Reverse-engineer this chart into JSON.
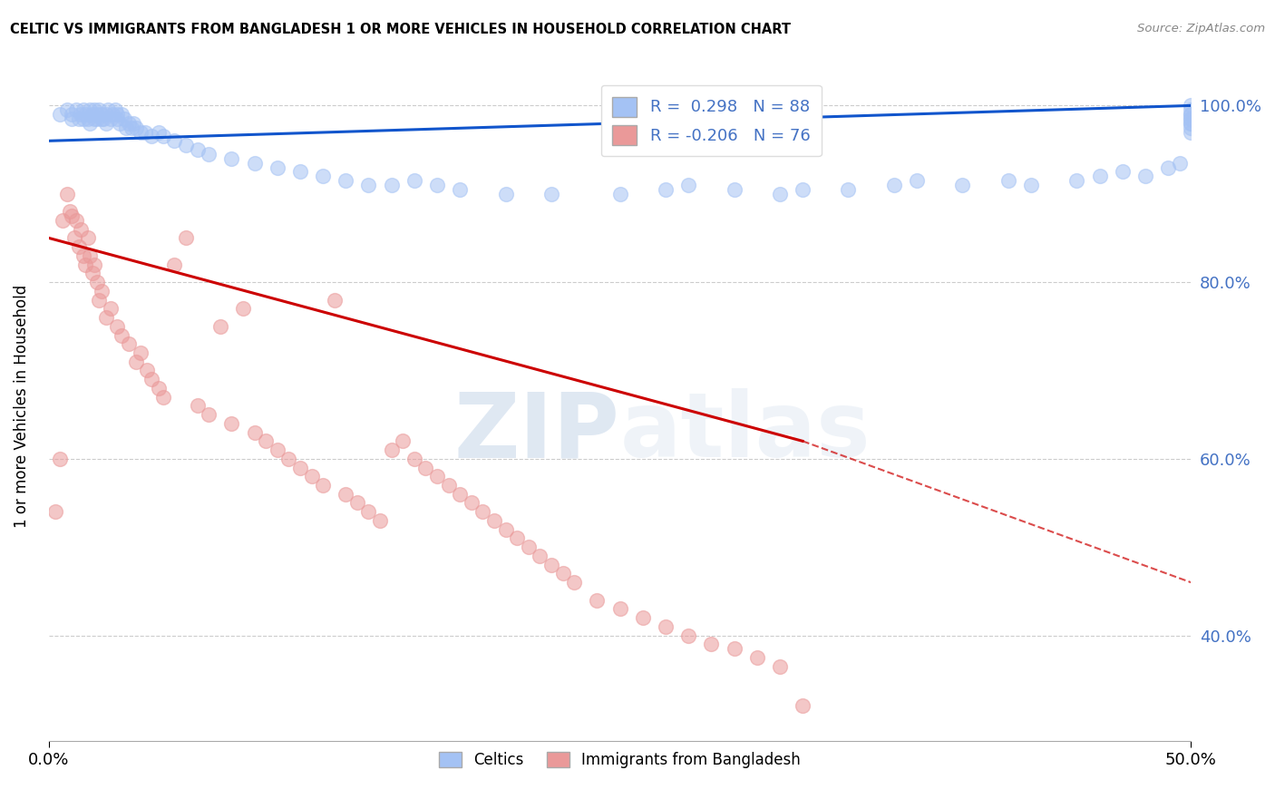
{
  "title": "CELTIC VS IMMIGRANTS FROM BANGLADESH 1 OR MORE VEHICLES IN HOUSEHOLD CORRELATION CHART",
  "source": "Source: ZipAtlas.com",
  "ylabel": "1 or more Vehicles in Household",
  "legend_blue_label": "Celtics",
  "legend_pink_label": "Immigrants from Bangladesh",
  "R_blue": 0.298,
  "N_blue": 88,
  "R_pink": -0.206,
  "N_pink": 76,
  "blue_color": "#a4c2f4",
  "pink_color": "#ea9999",
  "blue_line_color": "#1155cc",
  "pink_line_color": "#cc0000",
  "watermark_color": "#c9daf8",
  "blue_points_x": [
    0.5,
    0.8,
    1.0,
    1.0,
    1.2,
    1.3,
    1.4,
    1.5,
    1.5,
    1.6,
    1.7,
    1.8,
    1.8,
    1.9,
    2.0,
    2.0,
    2.1,
    2.1,
    2.2,
    2.3,
    2.3,
    2.4,
    2.5,
    2.5,
    2.6,
    2.7,
    2.8,
    2.9,
    3.0,
    3.0,
    3.1,
    3.2,
    3.3,
    3.4,
    3.5,
    3.6,
    3.7,
    3.8,
    4.0,
    4.2,
    4.5,
    4.8,
    5.0,
    5.5,
    6.0,
    6.5,
    7.0,
    8.0,
    9.0,
    10.0,
    11.0,
    12.0,
    13.0,
    14.0,
    15.0,
    16.0,
    17.0,
    18.0,
    20.0,
    22.0,
    25.0,
    27.0,
    28.0,
    30.0,
    32.0,
    33.0,
    35.0,
    37.0,
    38.0,
    40.0,
    42.0,
    43.0,
    45.0,
    46.0,
    47.0,
    48.0,
    49.0,
    49.5,
    50.0,
    50.0,
    50.0,
    50.0,
    50.0,
    50.0,
    50.0,
    50.0,
    50.0,
    50.0
  ],
  "blue_points_y": [
    99.0,
    99.5,
    99.0,
    98.5,
    99.5,
    98.5,
    99.0,
    98.5,
    99.5,
    99.0,
    98.5,
    99.5,
    98.0,
    99.0,
    98.5,
    99.5,
    98.5,
    99.0,
    99.5,
    98.5,
    99.0,
    98.5,
    99.0,
    98.0,
    99.5,
    98.5,
    99.0,
    99.5,
    98.5,
    99.0,
    98.0,
    99.0,
    98.5,
    97.5,
    98.0,
    97.5,
    98.0,
    97.5,
    97.0,
    97.0,
    96.5,
    97.0,
    96.5,
    96.0,
    95.5,
    95.0,
    94.5,
    94.0,
    93.5,
    93.0,
    92.5,
    92.0,
    91.5,
    91.0,
    91.0,
    91.5,
    91.0,
    90.5,
    90.0,
    90.0,
    90.0,
    90.5,
    91.0,
    90.5,
    90.0,
    90.5,
    90.5,
    91.0,
    91.5,
    91.0,
    91.5,
    91.0,
    91.5,
    92.0,
    92.5,
    92.0,
    93.0,
    93.5,
    97.0,
    98.0,
    98.5,
    99.0,
    99.5,
    98.0,
    97.5,
    98.5,
    99.0,
    100.0
  ],
  "pink_points_x": [
    0.3,
    0.5,
    0.6,
    0.8,
    0.9,
    1.0,
    1.1,
    1.2,
    1.3,
    1.4,
    1.5,
    1.6,
    1.7,
    1.8,
    1.9,
    2.0,
    2.1,
    2.2,
    2.3,
    2.5,
    2.7,
    3.0,
    3.2,
    3.5,
    3.8,
    4.0,
    4.3,
    4.5,
    4.8,
    5.0,
    5.5,
    6.0,
    6.5,
    7.0,
    7.5,
    8.0,
    8.5,
    9.0,
    9.5,
    10.0,
    10.5,
    11.0,
    11.5,
    12.0,
    12.5,
    13.0,
    13.5,
    14.0,
    14.5,
    15.0,
    15.5,
    16.0,
    16.5,
    17.0,
    17.5,
    18.0,
    18.5,
    19.0,
    19.5,
    20.0,
    20.5,
    21.0,
    21.5,
    22.0,
    22.5,
    23.0,
    24.0,
    25.0,
    26.0,
    27.0,
    28.0,
    29.0,
    30.0,
    31.0,
    32.0,
    33.0
  ],
  "pink_points_y": [
    54.0,
    60.0,
    87.0,
    90.0,
    88.0,
    87.5,
    85.0,
    87.0,
    84.0,
    86.0,
    83.0,
    82.0,
    85.0,
    83.0,
    81.0,
    82.0,
    80.0,
    78.0,
    79.0,
    76.0,
    77.0,
    75.0,
    74.0,
    73.0,
    71.0,
    72.0,
    70.0,
    69.0,
    68.0,
    67.0,
    82.0,
    85.0,
    66.0,
    65.0,
    75.0,
    64.0,
    77.0,
    63.0,
    62.0,
    61.0,
    60.0,
    59.0,
    58.0,
    57.0,
    78.0,
    56.0,
    55.0,
    54.0,
    53.0,
    61.0,
    62.0,
    60.0,
    59.0,
    58.0,
    57.0,
    56.0,
    55.0,
    54.0,
    53.0,
    52.0,
    51.0,
    50.0,
    49.0,
    48.0,
    47.0,
    46.0,
    44.0,
    43.0,
    42.0,
    41.0,
    40.0,
    39.0,
    38.5,
    37.5,
    36.5,
    32.0
  ],
  "xlim_pct": [
    0.0,
    50.0
  ],
  "ylim_pct": [
    28.0,
    104.0
  ],
  "ytick_positions": [
    100.0,
    80.0,
    60.0,
    40.0
  ],
  "ytick_labels": [
    "100.0%",
    "80.0%",
    "60.0%",
    "40.0%"
  ],
  "xtick_positions": [
    0.0,
    50.0
  ],
  "xtick_labels": [
    "0.0%",
    "50.0%"
  ],
  "grid_color": "#cccccc",
  "background_color": "#ffffff"
}
